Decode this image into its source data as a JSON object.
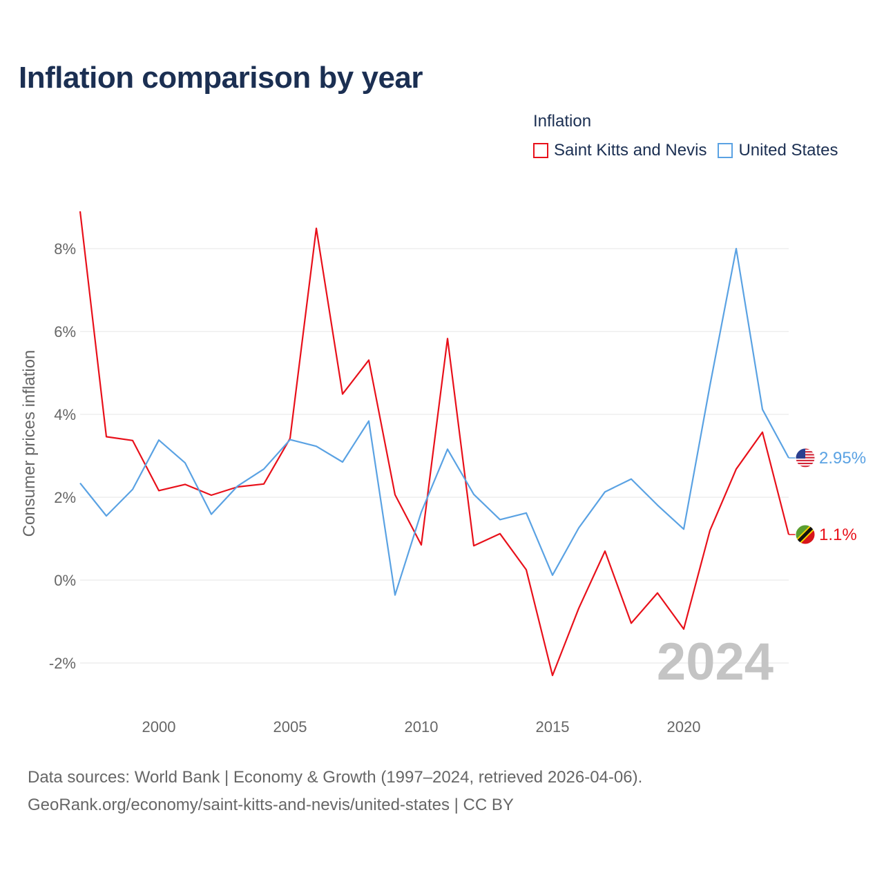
{
  "title": "Inflation comparison by year",
  "legend": {
    "title": "Inflation",
    "items": [
      {
        "label": "Saint Kitts and Nevis",
        "color": "#e8101a"
      },
      {
        "label": "United States",
        "color": "#5aa2e3"
      }
    ]
  },
  "chart_data": {
    "type": "line",
    "title": "Inflation comparison by year",
    "xlabel": "",
    "ylabel": "Consumer prices inflation",
    "x": [
      1997,
      1998,
      1999,
      2000,
      2001,
      2002,
      2003,
      2004,
      2005,
      2006,
      2007,
      2008,
      2009,
      2010,
      2011,
      2012,
      2013,
      2014,
      2015,
      2016,
      2017,
      2018,
      2019,
      2020,
      2021,
      2022,
      2023,
      2024
    ],
    "xticks": [
      "2000",
      "2005",
      "2010",
      "2015",
      "2020"
    ],
    "xtick_values": [
      2000,
      2005,
      2010,
      2015,
      2020
    ],
    "xlim": [
      1997,
      2024
    ],
    "ylim": [
      -3,
      9
    ],
    "yticks": [
      "-2%",
      "0%",
      "2%",
      "4%",
      "6%",
      "8%"
    ],
    "ytick_values": [
      -2,
      0,
      2,
      4,
      6,
      8
    ],
    "grid": true,
    "watermark_year": "2024",
    "series": [
      {
        "name": "Saint Kitts and Nevis",
        "color": "#e8101a",
        "end_label": "1.1%",
        "values": [
          8.9,
          3.46,
          3.37,
          2.16,
          2.31,
          2.05,
          2.25,
          2.32,
          3.42,
          8.49,
          4.49,
          5.31,
          2.06,
          0.85,
          5.83,
          0.83,
          1.12,
          0.25,
          -2.3,
          -0.68,
          0.7,
          -1.04,
          -0.31,
          -1.18,
          1.2,
          2.68,
          3.57,
          1.1
        ]
      },
      {
        "name": "United States",
        "color": "#5aa2e3",
        "end_label": "2.95%",
        "values": [
          2.34,
          1.55,
          2.19,
          3.38,
          2.83,
          1.59,
          2.27,
          2.68,
          3.39,
          3.23,
          2.85,
          3.84,
          -0.36,
          1.64,
          3.16,
          2.07,
          1.46,
          1.62,
          0.12,
          1.26,
          2.13,
          2.44,
          1.81,
          1.23,
          4.7,
          8.0,
          4.12,
          2.95
        ]
      }
    ]
  },
  "footer": {
    "line1": "Data sources: World Bank | Economy & Growth (1997–2024, retrieved 2026-04-06).",
    "line2": "GeoRank.org/economy/saint-kitts-and-nevis/united-states | CC BY"
  }
}
